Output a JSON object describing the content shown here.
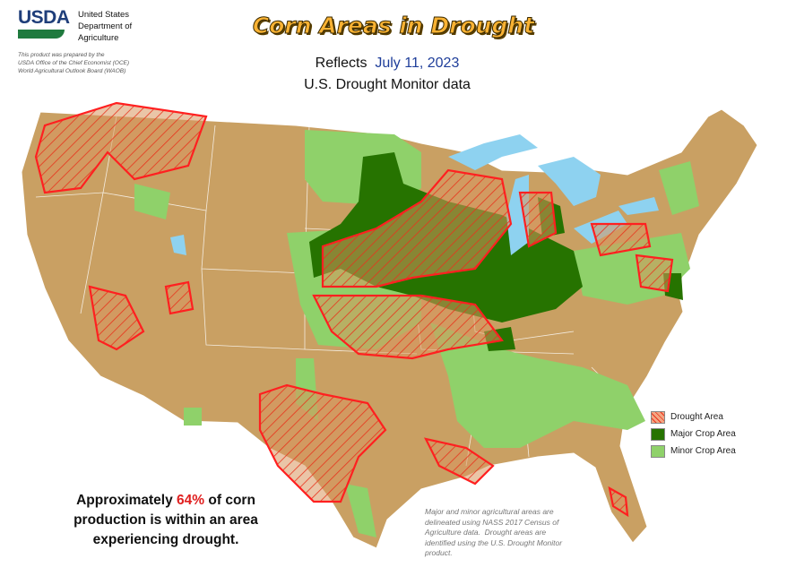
{
  "header": {
    "agency": "USDA",
    "department": [
      "United States",
      "Department of",
      "Agriculture"
    ],
    "credit": [
      "This product was prepared by the",
      "USDA Office of the Chief Economist (OCE)",
      "World Agricultural Outlook Board (WAOB)"
    ]
  },
  "title": "Corn Areas in Drought",
  "subtitle": {
    "prefix": "Reflects",
    "date": "July 11, 2023",
    "source": "U.S. Drought Monitor data"
  },
  "legend": [
    {
      "label": "Drought Area",
      "color": "#f4a582"
    },
    {
      "label": "Major Crop Area",
      "color": "#267300"
    },
    {
      "label": "Minor Crop Area",
      "color": "#8fd16a"
    }
  ],
  "summary": {
    "before": "Approximately ",
    "highlight": "64%",
    "lines": [
      " of corn",
      "production is within an area",
      "experiencing drought."
    ]
  },
  "note": [
    "Major and minor agricultural areas are",
    "delineated using NASS 2017 Census of",
    "Agriculture data.  Drought areas are",
    "identified using the U.S. Drought Monitor",
    "product."
  ]
}
